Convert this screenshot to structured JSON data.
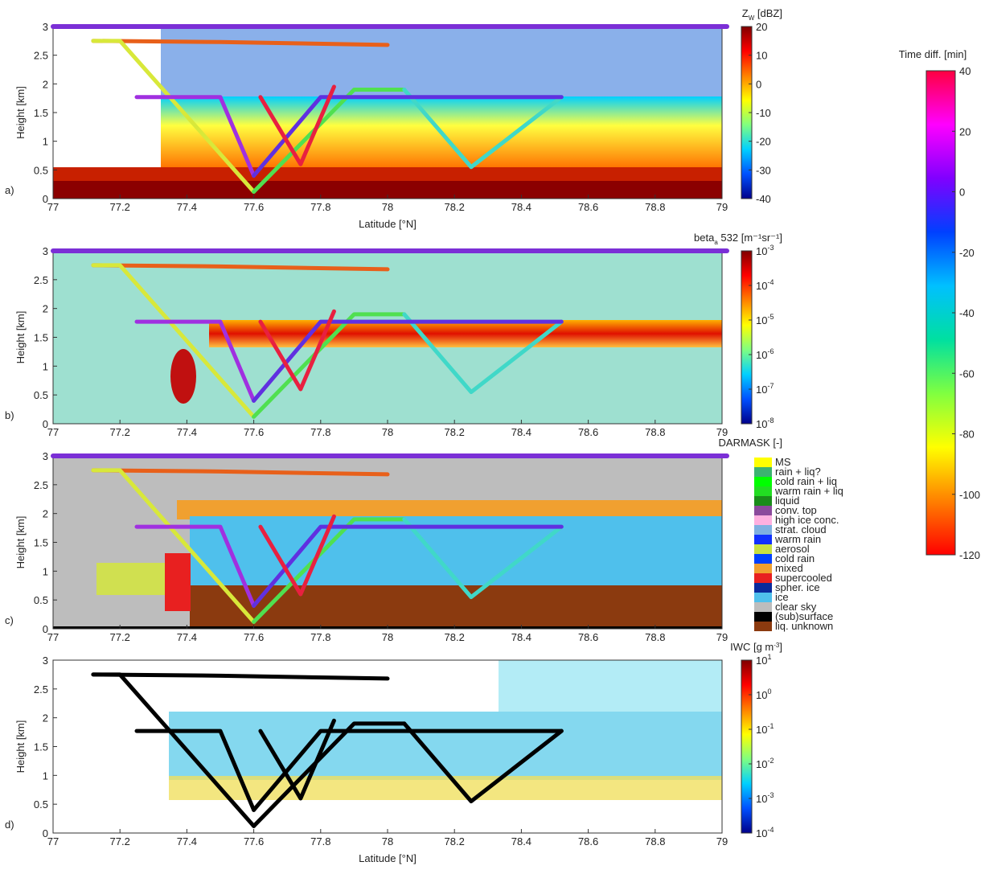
{
  "chart_data": {
    "type": "line",
    "xlabel": "Latitude [°N]",
    "ylabel": "Height [km]",
    "xlim": [
      77,
      79
    ],
    "xticks": [
      77,
      77.2,
      77.4,
      77.6,
      77.8,
      78,
      78.2,
      78.4,
      78.6,
      78.8,
      79
    ],
    "ylim": [
      0,
      3
    ],
    "yticks": [
      0,
      0.5,
      1,
      1.5,
      2,
      2.5,
      3
    ],
    "series": [
      {
        "color": "#e8601a",
        "x": [
          77.12,
          77.5,
          78.0
        ],
        "y": [
          2.75,
          2.73,
          2.68
        ]
      },
      {
        "color": "#d8e83a",
        "x": [
          77.12,
          77.2,
          77.6
        ],
        "y": [
          2.75,
          2.75,
          0.12
        ]
      },
      {
        "color": "#50e050",
        "x": [
          77.6,
          77.9,
          78.05
        ],
        "y": [
          0.12,
          1.9,
          1.9
        ]
      },
      {
        "color": "#40d8c8",
        "x": [
          78.05,
          78.25,
          78.52
        ],
        "y": [
          1.9,
          0.55,
          1.77
        ]
      },
      {
        "color": "#a030e0",
        "x": [
          77.25,
          77.5,
          77.6
        ],
        "y": [
          1.77,
          1.77,
          0.4
        ]
      },
      {
        "color": "#6030e0",
        "x": [
          77.6,
          77.8,
          78.52
        ],
        "y": [
          0.4,
          1.77,
          1.77
        ]
      },
      {
        "color": "#e82040",
        "x": [
          77.62,
          77.74,
          77.84
        ],
        "y": [
          1.77,
          0.6,
          1.95
        ]
      }
    ],
    "panels": [
      {
        "label": "a)",
        "title": "Z",
        "title_sub": "W",
        "title_rest": " [dBZ]",
        "top_line_color": "#7b2fd6",
        "clim": [
          -40,
          20
        ],
        "cticks": [
          -40,
          -30,
          -20,
          -10,
          0,
          10,
          20
        ],
        "colormap": [
          "#00008b",
          "#0050ff",
          "#00d0ff",
          "#80ff80",
          "#ffff00",
          "#ff8000",
          "#ff0000",
          "#800000"
        ]
      },
      {
        "label": "b)",
        "title": "beta",
        "title_sub": "a",
        "title_rest": " 532 [m⁻¹sr⁻¹]",
        "top_line_color": "#7b2fd6",
        "clog": true,
        "clim": [
          1e-08,
          0.001
        ],
        "cticks": [
          {
            "value": 1e-08,
            "label": "10",
            "exponent": "-8"
          },
          {
            "value": 1e-07,
            "label": "10",
            "exponent": "-7"
          },
          {
            "value": 1e-06,
            "label": "10",
            "exponent": "-6"
          },
          {
            "value": 1e-05,
            "label": "10",
            "exponent": "-5"
          },
          {
            "value": 0.0001,
            "label": "10",
            "exponent": "-4"
          },
          {
            "value": 0.001,
            "label": "10",
            "exponent": "-3"
          }
        ],
        "colormap": [
          "#00008b",
          "#0050ff",
          "#00d0ff",
          "#80ff80",
          "#ffff00",
          "#ff8000",
          "#ff0000",
          "#800000"
        ]
      },
      {
        "label": "c)",
        "title": "DARMASK [-]",
        "top_line_color": "#7b2fd6",
        "legend": [
          {
            "name": "MS",
            "color": "#ffff00"
          },
          {
            "name": "rain + liq?",
            "color": "#3cb371"
          },
          {
            "name": "cold rain + liq",
            "color": "#00ff00"
          },
          {
            "name": "warm rain + liq",
            "color": "#22dd22"
          },
          {
            "name": "liquid",
            "color": "#1a8c1a"
          },
          {
            "name": "conv. top",
            "color": "#8b4a9c"
          },
          {
            "name": "high ice conc.",
            "color": "#ffb0e0"
          },
          {
            "name": "strat. cloud",
            "color": "#7fb0e0"
          },
          {
            "name": "warm rain",
            "color": "#1030ff"
          },
          {
            "name": "aerosol",
            "color": "#c8e040"
          },
          {
            "name": "cold rain",
            "color": "#0040ff"
          },
          {
            "name": "mixed",
            "color": "#f0a030"
          },
          {
            "name": "supercooled",
            "color": "#e82020"
          },
          {
            "name": "spher. ice",
            "color": "#0a2a9c"
          },
          {
            "name": "ice",
            "color": "#4fc0ec"
          },
          {
            "name": "clear sky",
            "color": "#bdbdbd"
          },
          {
            "name": "(sub)surface",
            "color": "#000000"
          },
          {
            "name": "liq. unknown",
            "color": "#8b3a0f"
          }
        ]
      },
      {
        "label": "d)",
        "title": "IWC [g m",
        "title_sup": "-3",
        "title_rest": "]",
        "track_color": "#000000",
        "clog": true,
        "clim": [
          0.0001,
          10
        ],
        "cticks": [
          {
            "value": 0.0001,
            "label": "10",
            "exponent": "-4"
          },
          {
            "value": 0.001,
            "label": "10",
            "exponent": "-3"
          },
          {
            "value": 0.01,
            "label": "10",
            "exponent": "-2"
          },
          {
            "value": 0.1,
            "label": "10",
            "exponent": "-1"
          },
          {
            "value": 1,
            "label": "10",
            "exponent": "0"
          },
          {
            "value": 10,
            "label": "10",
            "exponent": "1"
          }
        ],
        "colormap": [
          "#00008b",
          "#0050ff",
          "#00d0ff",
          "#80ff80",
          "#ffff00",
          "#ff8000",
          "#ff0000",
          "#800000"
        ]
      }
    ],
    "time_colorbar": {
      "title": "Time diff. [min]",
      "clim": [
        -120,
        40
      ],
      "cticks": [
        -120,
        -100,
        -80,
        -60,
        -40,
        -20,
        0,
        20,
        40
      ],
      "colormap": [
        "#ff0000",
        "#ff8000",
        "#ffff00",
        "#80ff40",
        "#00e0a0",
        "#00c0ff",
        "#0040ff",
        "#8000ff",
        "#ff00ff",
        "#ff0040"
      ]
    }
  }
}
